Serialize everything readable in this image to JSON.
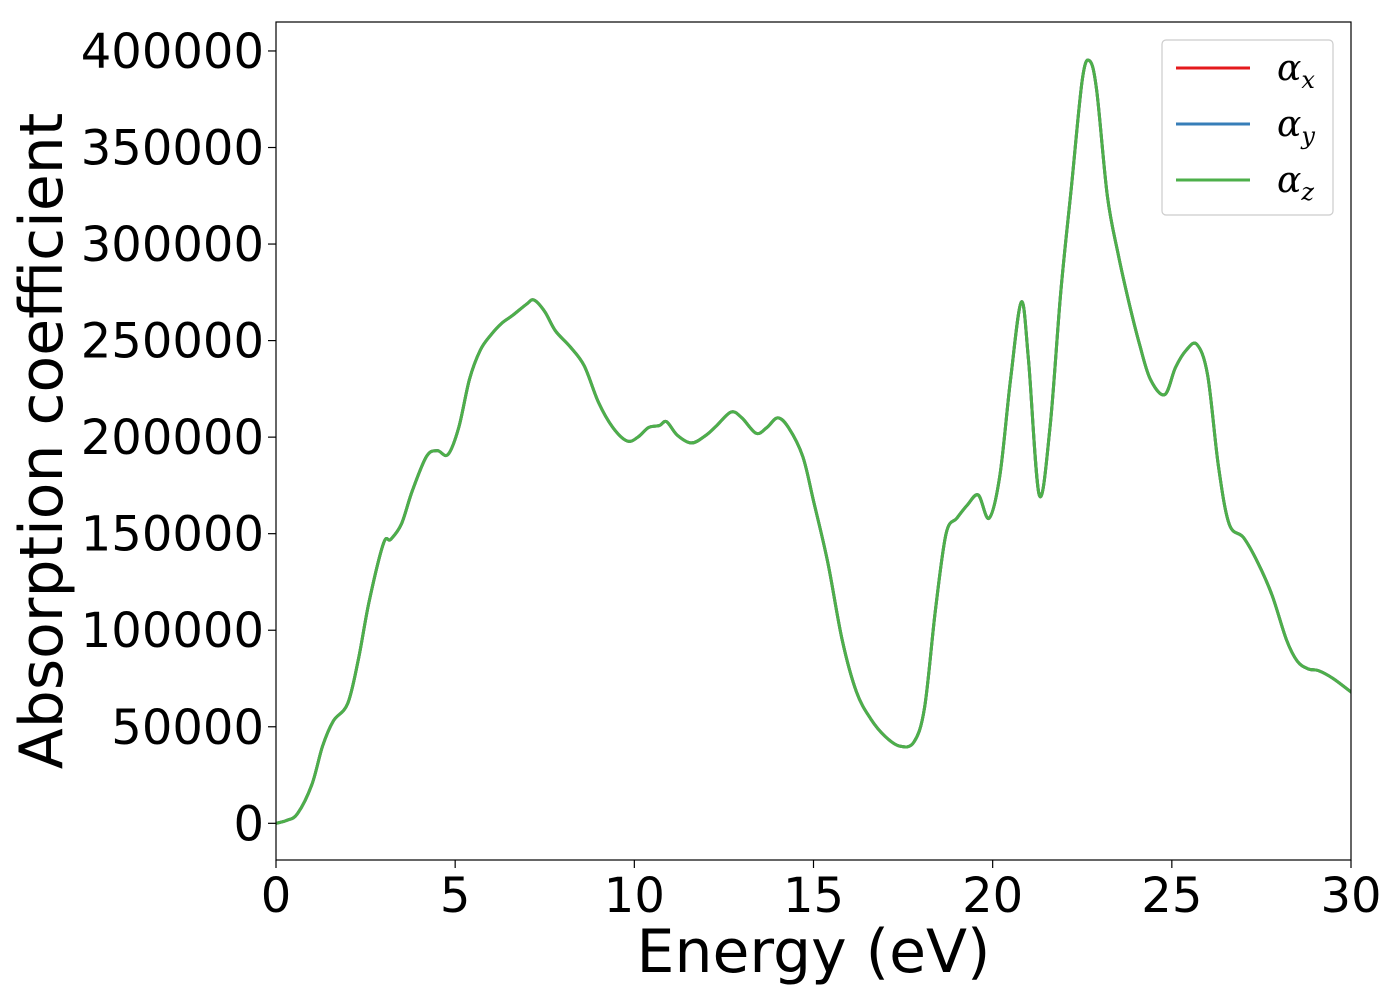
{
  "chart_data": {
    "type": "line",
    "title": "",
    "xlabel": "Energy (eV)",
    "ylabel": "Absorption coefficient",
    "xlim": [
      0,
      30
    ],
    "ylim": [
      -19000,
      415000
    ],
    "xticks": [
      0,
      5,
      10,
      15,
      20,
      25,
      30
    ],
    "yticks": [
      0,
      50000,
      100000,
      150000,
      200000,
      250000,
      300000,
      350000,
      400000
    ],
    "grid": false,
    "legend_position": "upper-right",
    "series": [
      {
        "name": "α",
        "subscript": "x",
        "color": "#e41a1c",
        "x": [
          0,
          0.3,
          0.6,
          1.0,
          1.3,
          1.6,
          2.0,
          2.3,
          2.6,
          3.0,
          3.2,
          3.5,
          3.8,
          4.2,
          4.5,
          4.8,
          5.1,
          5.4,
          5.7,
          6.0,
          6.3,
          6.6,
          7.0,
          7.2,
          7.5,
          7.8,
          8.2,
          8.6,
          9.0,
          9.4,
          9.8,
          10.1,
          10.4,
          10.7,
          10.9,
          11.2,
          11.6,
          12.0,
          12.3,
          12.7,
          13.0,
          13.4,
          13.7,
          14.0,
          14.3,
          14.7,
          15.0,
          15.4,
          15.8,
          16.2,
          16.6,
          17.0,
          17.4,
          17.8,
          18.1,
          18.4,
          18.7,
          19.0,
          19.3,
          19.6,
          19.9,
          20.2,
          20.5,
          20.8,
          21.0,
          21.3,
          21.6,
          21.9,
          22.2,
          22.5,
          22.7,
          22.9,
          23.2,
          23.5,
          23.8,
          24.1,
          24.4,
          24.8,
          25.1,
          25.4,
          25.7,
          26.0,
          26.3,
          26.6,
          27.0,
          27.4,
          27.8,
          28.2,
          28.5,
          28.8,
          29.1,
          29.5,
          30.0
        ],
        "y": [
          0,
          1500,
          5000,
          20000,
          40000,
          53000,
          62000,
          85000,
          115000,
          145000,
          147000,
          155000,
          172000,
          190000,
          193000,
          191000,
          205000,
          230000,
          245000,
          253000,
          259000,
          263000,
          269000,
          271000,
          265000,
          255000,
          247000,
          237000,
          218000,
          205000,
          198000,
          200000,
          205000,
          206000,
          208000,
          201000,
          197000,
          201000,
          206000,
          213000,
          210000,
          202000,
          205000,
          210000,
          205000,
          190000,
          167000,
          135000,
          95000,
          68000,
          54000,
          45000,
          40000,
          42000,
          60000,
          110000,
          150000,
          158000,
          165000,
          170000,
          158000,
          180000,
          230000,
          270000,
          240000,
          170000,
          205000,
          275000,
          330000,
          385000,
          395000,
          380000,
          325000,
          295000,
          270000,
          248000,
          230000,
          222000,
          236000,
          245000,
          248000,
          232000,
          185000,
          155000,
          148000,
          135000,
          118000,
          95000,
          84000,
          80000,
          79000,
          75000,
          68000
        ]
      },
      {
        "name": "α",
        "subscript": "y",
        "color": "#377eb8",
        "x": [
          0,
          0.3,
          0.6,
          1.0,
          1.3,
          1.6,
          2.0,
          2.3,
          2.6,
          3.0,
          3.2,
          3.5,
          3.8,
          4.2,
          4.5,
          4.8,
          5.1,
          5.4,
          5.7,
          6.0,
          6.3,
          6.6,
          7.0,
          7.2,
          7.5,
          7.8,
          8.2,
          8.6,
          9.0,
          9.4,
          9.8,
          10.1,
          10.4,
          10.7,
          10.9,
          11.2,
          11.6,
          12.0,
          12.3,
          12.7,
          13.0,
          13.4,
          13.7,
          14.0,
          14.3,
          14.7,
          15.0,
          15.4,
          15.8,
          16.2,
          16.6,
          17.0,
          17.4,
          17.8,
          18.1,
          18.4,
          18.7,
          19.0,
          19.3,
          19.6,
          19.9,
          20.2,
          20.5,
          20.8,
          21.0,
          21.3,
          21.6,
          21.9,
          22.2,
          22.5,
          22.7,
          22.9,
          23.2,
          23.5,
          23.8,
          24.1,
          24.4,
          24.8,
          25.1,
          25.4,
          25.7,
          26.0,
          26.3,
          26.6,
          27.0,
          27.4,
          27.8,
          28.2,
          28.5,
          28.8,
          29.1,
          29.5,
          30.0
        ],
        "y": [
          0,
          1500,
          5000,
          20000,
          40000,
          53000,
          62000,
          85000,
          115000,
          145000,
          147000,
          155000,
          172000,
          190000,
          193000,
          191000,
          205000,
          230000,
          245000,
          253000,
          259000,
          263000,
          269000,
          271000,
          265000,
          255000,
          247000,
          237000,
          218000,
          205000,
          198000,
          200000,
          205000,
          206000,
          208000,
          201000,
          197000,
          201000,
          206000,
          213000,
          210000,
          202000,
          205000,
          210000,
          205000,
          190000,
          167000,
          135000,
          95000,
          68000,
          54000,
          45000,
          40000,
          42000,
          60000,
          110000,
          150000,
          158000,
          165000,
          170000,
          158000,
          180000,
          230000,
          270000,
          240000,
          170000,
          205000,
          275000,
          330000,
          385000,
          395000,
          380000,
          325000,
          295000,
          270000,
          248000,
          230000,
          222000,
          236000,
          245000,
          248000,
          232000,
          185000,
          155000,
          148000,
          135000,
          118000,
          95000,
          84000,
          80000,
          79000,
          75000,
          68000
        ]
      },
      {
        "name": "α",
        "subscript": "z",
        "color": "#4daf4a",
        "x": [
          0,
          0.3,
          0.6,
          1.0,
          1.3,
          1.6,
          2.0,
          2.3,
          2.6,
          3.0,
          3.2,
          3.5,
          3.8,
          4.2,
          4.5,
          4.8,
          5.1,
          5.4,
          5.7,
          6.0,
          6.3,
          6.6,
          7.0,
          7.2,
          7.5,
          7.8,
          8.2,
          8.6,
          9.0,
          9.4,
          9.8,
          10.1,
          10.4,
          10.7,
          10.9,
          11.2,
          11.6,
          12.0,
          12.3,
          12.7,
          13.0,
          13.4,
          13.7,
          14.0,
          14.3,
          14.7,
          15.0,
          15.4,
          15.8,
          16.2,
          16.6,
          17.0,
          17.4,
          17.8,
          18.1,
          18.4,
          18.7,
          19.0,
          19.3,
          19.6,
          19.9,
          20.2,
          20.5,
          20.8,
          21.0,
          21.3,
          21.6,
          21.9,
          22.2,
          22.5,
          22.7,
          22.9,
          23.2,
          23.5,
          23.8,
          24.1,
          24.4,
          24.8,
          25.1,
          25.4,
          25.7,
          26.0,
          26.3,
          26.6,
          27.0,
          27.4,
          27.8,
          28.2,
          28.5,
          28.8,
          29.1,
          29.5,
          30.0
        ],
        "y": [
          0,
          1500,
          5000,
          20000,
          40000,
          53000,
          62000,
          85000,
          115000,
          145000,
          147000,
          155000,
          172000,
          190000,
          193000,
          191000,
          205000,
          230000,
          245000,
          253000,
          259000,
          263000,
          269000,
          271000,
          265000,
          255000,
          247000,
          237000,
          218000,
          205000,
          198000,
          200000,
          205000,
          206000,
          208000,
          201000,
          197000,
          201000,
          206000,
          213000,
          210000,
          202000,
          205000,
          210000,
          205000,
          190000,
          167000,
          135000,
          95000,
          68000,
          54000,
          45000,
          40000,
          42000,
          60000,
          110000,
          150000,
          158000,
          165000,
          170000,
          158000,
          180000,
          230000,
          270000,
          240000,
          170000,
          205000,
          275000,
          330000,
          385000,
          395000,
          380000,
          325000,
          295000,
          270000,
          248000,
          230000,
          222000,
          236000,
          245000,
          248000,
          232000,
          185000,
          155000,
          148000,
          135000,
          118000,
          95000,
          84000,
          80000,
          79000,
          75000,
          68000
        ]
      }
    ]
  }
}
